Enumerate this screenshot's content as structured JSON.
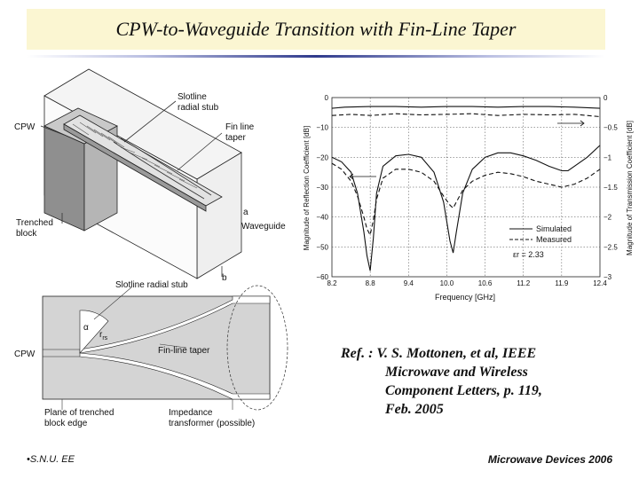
{
  "title": "CPW-to-Waveguide Transition with Fin-Line Taper",
  "diagram_top": {
    "labels": {
      "cpw": "CPW",
      "slotline_stub_1": "Slotline",
      "slotline_stub_2": "radial stub",
      "fin_line_1": "Fin line",
      "fin_line_2": "taper",
      "trenched_1": "Trenched",
      "trenched_2": "block",
      "marker_a": "a",
      "waveguide": "Waveguide",
      "marker_b": "b"
    }
  },
  "diagram_bottom": {
    "labels": {
      "slotline_radial_stub": "Slotline radial stub",
      "alpha": "α",
      "r_rs": "r",
      "r_rs_sub": "rs",
      "cpw": "CPW",
      "fin_line_taper": "Fin-line taper",
      "plane_1": "Plane of trenched",
      "plane_2": "block edge",
      "impedance_1": "Impedance",
      "impedance_2": "transformer (possible)"
    }
  },
  "chart_data": {
    "type": "line",
    "xlabel": "Frequency [GHz]",
    "ylabel_left": "Magnitude of Reflection Coefficient [dB]",
    "ylabel_right": "Magnitude of Transmission Coefficient [dB]",
    "xticks": [
      "8.2",
      "8.8",
      "9.4",
      "10.0",
      "10.6",
      "11.2",
      "11.9",
      "12.4"
    ],
    "xlim": [
      8.2,
      12.4
    ],
    "yticks_left": [
      "0",
      "−10",
      "−20",
      "−30",
      "−40",
      "−50",
      "−60"
    ],
    "ylim_left": [
      -60,
      0
    ],
    "yticks_right": [
      "0",
      "−0.5",
      "−1",
      "−1.5",
      "−2",
      "−2.5",
      "−3"
    ],
    "ylim_right": [
      -3,
      0
    ],
    "grid": true,
    "legend": {
      "simulated": "Simulated",
      "measured": "Measured",
      "placement": "bottom-right"
    },
    "annotation": "εr = 2.33",
    "series": [
      {
        "name": "Simulated",
        "axis": "left",
        "style": "solid",
        "x": [
          8.2,
          8.35,
          8.5,
          8.6,
          8.7,
          8.75,
          8.8,
          8.85,
          8.9,
          9.0,
          9.2,
          9.4,
          9.6,
          9.8,
          9.95,
          10.05,
          10.1,
          10.15,
          10.25,
          10.4,
          10.6,
          10.8,
          11.0,
          11.2,
          11.4,
          11.6,
          11.8,
          11.9,
          12.0,
          12.2,
          12.4
        ],
        "y": [
          -20,
          -21.5,
          -25,
          -32,
          -45,
          -53,
          -58,
          -47,
          -32,
          -23,
          -19.5,
          -19,
          -20,
          -25,
          -35,
          -48,
          -52,
          -45,
          -32,
          -24,
          -20,
          -18.5,
          -18.5,
          -19.5,
          -21,
          -23,
          -24.5,
          -24.5,
          -23,
          -20,
          -16
        ]
      },
      {
        "name": "Measured",
        "axis": "left",
        "style": "dashed",
        "x": [
          8.2,
          8.35,
          8.5,
          8.6,
          8.7,
          8.75,
          8.8,
          8.85,
          8.9,
          9.0,
          9.2,
          9.4,
          9.6,
          9.8,
          9.95,
          10.05,
          10.1,
          10.15,
          10.25,
          10.4,
          10.6,
          10.8,
          11.0,
          11.2,
          11.4,
          11.6,
          11.8,
          12.0,
          12.2,
          12.4
        ],
        "y": [
          -22,
          -24,
          -28,
          -33,
          -40,
          -44,
          -46,
          -41,
          -34,
          -27,
          -24,
          -24,
          -25,
          -28,
          -33,
          -36,
          -37,
          -35,
          -31,
          -28,
          -26,
          -25,
          -25.5,
          -26.5,
          -28,
          -29,
          -30,
          -29,
          -27,
          -24
        ]
      },
      {
        "name": "Simulated",
        "axis": "right",
        "style": "solid",
        "x": [
          8.2,
          8.4,
          8.8,
          9.2,
          9.6,
          10.0,
          10.4,
          10.8,
          11.2,
          11.6,
          12.0,
          12.4
        ],
        "y": [
          -0.18,
          -0.16,
          -0.15,
          -0.15,
          -0.16,
          -0.15,
          -0.15,
          -0.16,
          -0.15,
          -0.15,
          -0.16,
          -0.18
        ]
      },
      {
        "name": "Measured",
        "axis": "right",
        "style": "dashed",
        "x": [
          8.2,
          8.5,
          8.8,
          9.2,
          9.6,
          10.0,
          10.4,
          10.8,
          11.2,
          11.6,
          12.0,
          12.4
        ],
        "y": [
          -0.3,
          -0.28,
          -0.3,
          -0.27,
          -0.29,
          -0.28,
          -0.27,
          -0.3,
          -0.28,
          -0.29,
          -0.28,
          -0.32
        ]
      }
    ]
  },
  "reference": {
    "line1": "Ref. : V. S. Mottonen, et al, IEEE",
    "line2": "Microwave and Wireless",
    "line3": "Component Letters, p. 119,",
    "line4": "Feb. 2005"
  },
  "footer": {
    "left": "S.N.U. EE",
    "right": "Microwave Devices 2006"
  }
}
